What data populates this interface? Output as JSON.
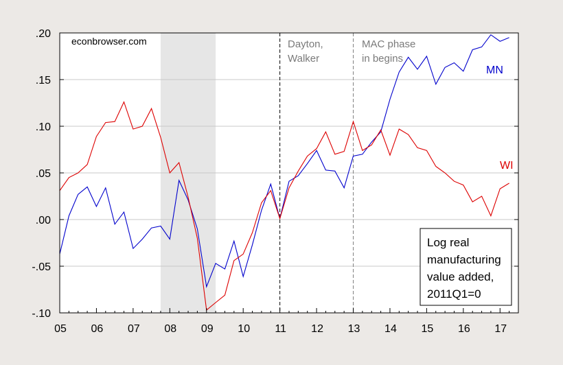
{
  "chart_data": {
    "type": "line",
    "title": "",
    "xlabel": "",
    "ylabel": "",
    "source_label": "econbrowser.com",
    "xlim": [
      2005.0,
      2017.5
    ],
    "ylim": [
      -0.1,
      0.2
    ],
    "yticks": [
      ".20",
      ".15",
      ".10",
      ".05",
      ".00",
      "-.05",
      "-.10"
    ],
    "ytick_values": [
      0.2,
      0.15,
      0.1,
      0.05,
      0.0,
      -0.05,
      -0.1
    ],
    "xticks": [
      "05",
      "06",
      "07",
      "08",
      "09",
      "10",
      "11",
      "12",
      "13",
      "14",
      "15",
      "16",
      "17"
    ],
    "xtick_values": [
      2005,
      2006,
      2007,
      2008,
      2009,
      2010,
      2011,
      2012,
      2013,
      2014,
      2015,
      2016,
      2017
    ],
    "grid": true,
    "recession_shading": [
      2007.75,
      2009.25
    ],
    "vlines": [
      {
        "x": 2011.0,
        "label_lines": [
          "Dayton,",
          "Walker"
        ],
        "color": "#000000"
      },
      {
        "x": 2013.0,
        "label_lines": [
          "MAC phase",
          "in begins"
        ],
        "color": "#808080"
      }
    ],
    "annotation_box": [
      "Log real",
      "manufacturing",
      "value added,",
      "2011Q1=0"
    ],
    "series": [
      {
        "name": "MN",
        "color": "#0000cc",
        "x": [
          2005.0,
          2005.25,
          2005.5,
          2005.75,
          2006.0,
          2006.25,
          2006.5,
          2006.75,
          2007.0,
          2007.25,
          2007.5,
          2007.75,
          2008.0,
          2008.25,
          2008.5,
          2008.75,
          2009.0,
          2009.25,
          2009.5,
          2009.75,
          2010.0,
          2010.25,
          2010.5,
          2010.75,
          2011.0,
          2011.25,
          2011.5,
          2011.75,
          2012.0,
          2012.25,
          2012.5,
          2012.75,
          2013.0,
          2013.25,
          2013.5,
          2013.75,
          2014.0,
          2014.25,
          2014.5,
          2014.75,
          2015.0,
          2015.25,
          2015.5,
          2015.75,
          2016.0,
          2016.25,
          2016.5,
          2016.75,
          2017.0,
          2017.25
        ],
        "values": [
          -0.037,
          0.004,
          0.027,
          0.035,
          0.014,
          0.034,
          -0.005,
          0.008,
          -0.031,
          -0.021,
          -0.009,
          -0.007,
          -0.021,
          0.042,
          0.021,
          -0.01,
          -0.072,
          -0.047,
          -0.053,
          -0.023,
          -0.061,
          -0.027,
          0.01,
          0.038,
          0.001,
          0.041,
          0.047,
          0.06,
          0.074,
          0.053,
          0.052,
          0.034,
          0.068,
          0.07,
          0.083,
          0.094,
          0.129,
          0.158,
          0.174,
          0.161,
          0.175,
          0.145,
          0.163,
          0.168,
          0.159,
          0.182,
          0.185,
          0.198,
          0.191,
          0.195
        ]
      },
      {
        "name": "WI",
        "color": "#dd0000",
        "x": [
          2005.0,
          2005.25,
          2005.5,
          2005.75,
          2006.0,
          2006.25,
          2006.5,
          2006.75,
          2007.0,
          2007.25,
          2007.5,
          2007.75,
          2008.0,
          2008.25,
          2008.5,
          2008.75,
          2009.0,
          2009.25,
          2009.5,
          2009.75,
          2010.0,
          2010.25,
          2010.5,
          2010.75,
          2011.0,
          2011.25,
          2011.5,
          2011.75,
          2012.0,
          2012.25,
          2012.5,
          2012.75,
          2013.0,
          2013.25,
          2013.5,
          2013.75,
          2014.0,
          2014.25,
          2014.5,
          2014.75,
          2015.0,
          2015.25,
          2015.5,
          2015.75,
          2016.0,
          2016.25,
          2016.5,
          2016.75,
          2017.0,
          2017.25
        ],
        "values": [
          0.031,
          0.045,
          0.05,
          0.059,
          0.089,
          0.104,
          0.105,
          0.126,
          0.097,
          0.1,
          0.119,
          0.088,
          0.05,
          0.061,
          0.024,
          -0.02,
          -0.097,
          -0.089,
          -0.081,
          -0.044,
          -0.037,
          -0.014,
          0.018,
          0.031,
          0.001,
          0.034,
          0.052,
          0.068,
          0.076,
          0.094,
          0.07,
          0.073,
          0.105,
          0.074,
          0.08,
          0.096,
          0.069,
          0.097,
          0.091,
          0.077,
          0.074,
          0.057,
          0.05,
          0.041,
          0.037,
          0.019,
          0.025,
          0.004,
          0.033,
          0.039
        ]
      }
    ]
  }
}
